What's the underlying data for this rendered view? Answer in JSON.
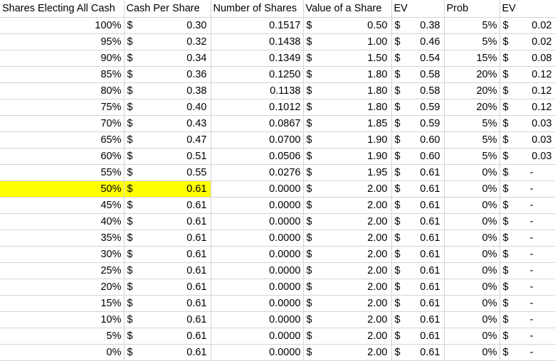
{
  "headers": [
    "Shares Electing All Cash",
    "Cash Per Share",
    "Number of Shares",
    "Value of a Share",
    "EV",
    "Prob",
    "EV"
  ],
  "currency_symbol": "$",
  "highlight_color": "#ffff00",
  "highlighted_row_index": 10,
  "rows": [
    {
      "pct": "100%",
      "cash": "0.30",
      "num_shares": "0.1517",
      "value": "0.50",
      "ev": "0.38",
      "prob": "5%",
      "ev2": "0.02"
    },
    {
      "pct": "95%",
      "cash": "0.32",
      "num_shares": "0.1438",
      "value": "1.00",
      "ev": "0.46",
      "prob": "5%",
      "ev2": "0.02"
    },
    {
      "pct": "90%",
      "cash": "0.34",
      "num_shares": "0.1349",
      "value": "1.50",
      "ev": "0.54",
      "prob": "15%",
      "ev2": "0.08"
    },
    {
      "pct": "85%",
      "cash": "0.36",
      "num_shares": "0.1250",
      "value": "1.80",
      "ev": "0.58",
      "prob": "20%",
      "ev2": "0.12"
    },
    {
      "pct": "80%",
      "cash": "0.38",
      "num_shares": "0.1138",
      "value": "1.80",
      "ev": "0.58",
      "prob": "20%",
      "ev2": "0.12"
    },
    {
      "pct": "75%",
      "cash": "0.40",
      "num_shares": "0.1012",
      "value": "1.80",
      "ev": "0.59",
      "prob": "20%",
      "ev2": "0.12"
    },
    {
      "pct": "70%",
      "cash": "0.43",
      "num_shares": "0.0867",
      "value": "1.85",
      "ev": "0.59",
      "prob": "5%",
      "ev2": "0.03"
    },
    {
      "pct": "65%",
      "cash": "0.47",
      "num_shares": "0.0700",
      "value": "1.90",
      "ev": "0.60",
      "prob": "5%",
      "ev2": "0.03"
    },
    {
      "pct": "60%",
      "cash": "0.51",
      "num_shares": "0.0506",
      "value": "1.90",
      "ev": "0.60",
      "prob": "5%",
      "ev2": "0.03"
    },
    {
      "pct": "55%",
      "cash": "0.55",
      "num_shares": "0.0276",
      "value": "1.95",
      "ev": "0.61",
      "prob": "0%",
      "ev2": "-"
    },
    {
      "pct": "50%",
      "cash": "0.61",
      "num_shares": "0.0000",
      "value": "2.00",
      "ev": "0.61",
      "prob": "0%",
      "ev2": "-"
    },
    {
      "pct": "45%",
      "cash": "0.61",
      "num_shares": "0.0000",
      "value": "2.00",
      "ev": "0.61",
      "prob": "0%",
      "ev2": "-"
    },
    {
      "pct": "40%",
      "cash": "0.61",
      "num_shares": "0.0000",
      "value": "2.00",
      "ev": "0.61",
      "prob": "0%",
      "ev2": "-"
    },
    {
      "pct": "35%",
      "cash": "0.61",
      "num_shares": "0.0000",
      "value": "2.00",
      "ev": "0.61",
      "prob": "0%",
      "ev2": "-"
    },
    {
      "pct": "30%",
      "cash": "0.61",
      "num_shares": "0.0000",
      "value": "2.00",
      "ev": "0.61",
      "prob": "0%",
      "ev2": "-"
    },
    {
      "pct": "25%",
      "cash": "0.61",
      "num_shares": "0.0000",
      "value": "2.00",
      "ev": "0.61",
      "prob": "0%",
      "ev2": "-"
    },
    {
      "pct": "20%",
      "cash": "0.61",
      "num_shares": "0.0000",
      "value": "2.00",
      "ev": "0.61",
      "prob": "0%",
      "ev2": "-"
    },
    {
      "pct": "15%",
      "cash": "0.61",
      "num_shares": "0.0000",
      "value": "2.00",
      "ev": "0.61",
      "prob": "0%",
      "ev2": "-"
    },
    {
      "pct": "10%",
      "cash": "0.61",
      "num_shares": "0.0000",
      "value": "2.00",
      "ev": "0.61",
      "prob": "0%",
      "ev2": "-"
    },
    {
      "pct": "5%",
      "cash": "0.61",
      "num_shares": "0.0000",
      "value": "2.00",
      "ev": "0.61",
      "prob": "0%",
      "ev2": "-"
    },
    {
      "pct": "0%",
      "cash": "0.61",
      "num_shares": "0.0000",
      "value": "2.00",
      "ev": "0.61",
      "prob": "0%",
      "ev2": "-"
    }
  ]
}
